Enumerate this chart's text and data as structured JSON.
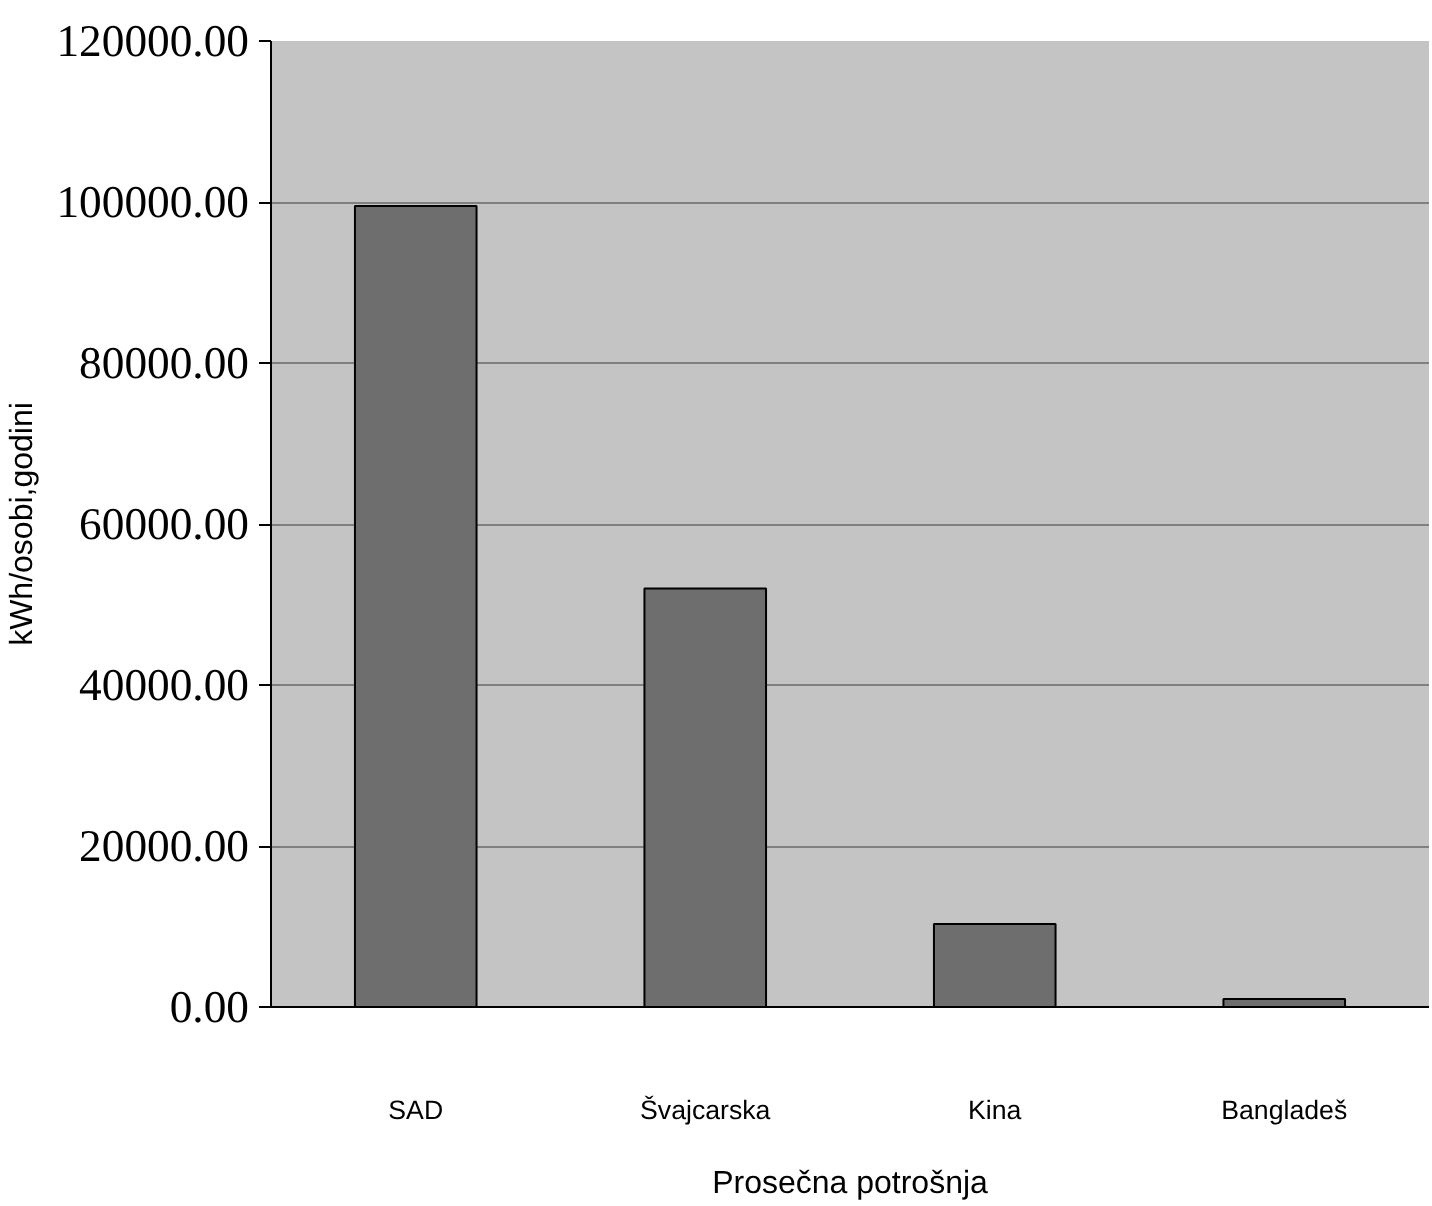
{
  "chart_data": {
    "type": "bar",
    "xlabel": "Prosečna potrošnja",
    "ylabel": "kWh/osobi,godini",
    "categories": [
      "SAD",
      "Švajcarska",
      "Kina",
      "Bangladeš"
    ],
    "values": [
      99500,
      52000,
      10300,
      1000
    ],
    "color": "#6e6e6e",
    "ylim": [
      0,
      120000
    ],
    "yticks": [
      {
        "value": 0,
        "label": "0.00"
      },
      {
        "value": 20000,
        "label": "20000.00"
      },
      {
        "value": 40000,
        "label": "40000.00"
      },
      {
        "value": 60000,
        "label": "60000.00"
      },
      {
        "value": 80000,
        "label": "80000.00"
      },
      {
        "value": 100000,
        "label": "100000.00"
      },
      {
        "value": 120000,
        "label": "120000.00"
      }
    ],
    "grid": "y"
  }
}
